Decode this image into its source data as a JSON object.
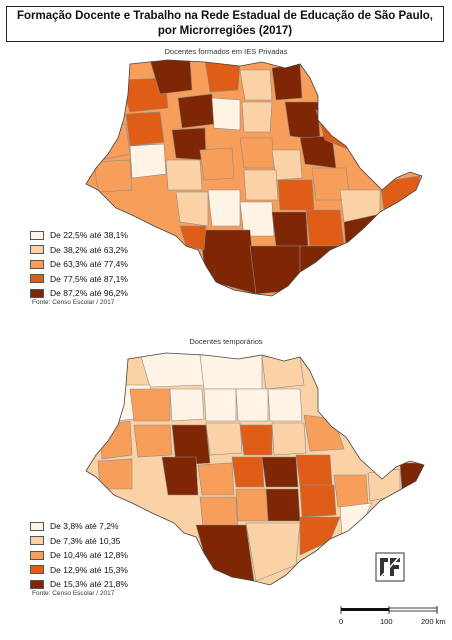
{
  "title": "Formação Docente e Trabalho na Rede Estadual de Educação de São Paulo, por Microrregiões (2017)",
  "maps": [
    {
      "title": "Docentes formados em IES Privadas",
      "source": "Fonte: Censo Escolar / 2017",
      "legend": [
        {
          "label": "De 22,5% até 38,1%",
          "color": "#fff3e6"
        },
        {
          "label": "De 38,2% até 63,2%",
          "color": "#fbd2a6"
        },
        {
          "label": "De 63,3% até 77,4%",
          "color": "#f79e5b"
        },
        {
          "label": "De 77,5% até 87,1%",
          "color": "#e05d17"
        },
        {
          "label": "De 87,2% até 96,2%",
          "color": "#7f2704"
        }
      ]
    },
    {
      "title": "Docentes temporários",
      "source": "Fonte: Censo Escolar / 2017",
      "legend": [
        {
          "label": "De 3,8% até 7,2%",
          "color": "#fff3e6"
        },
        {
          "label": "De 7,3% até 10,35",
          "color": "#fbd2a6"
        },
        {
          "label": "De 10,4% até 12,8%",
          "color": "#f79e5b"
        },
        {
          "label": "De 12,9% até 15,3%",
          "color": "#e05d17"
        },
        {
          "label": "De 15,3% até 21,8%",
          "color": "#7f2704"
        }
      ]
    }
  ],
  "scale": {
    "ticks": [
      "0",
      "100",
      "200 km"
    ]
  }
}
